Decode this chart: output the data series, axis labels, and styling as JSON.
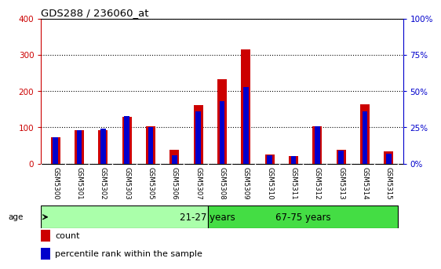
{
  "title": "GDS288 / 236060_at",
  "samples": [
    "GSM5300",
    "GSM5301",
    "GSM5302",
    "GSM5303",
    "GSM5305",
    "GSM5306",
    "GSM5307",
    "GSM5308",
    "GSM5309",
    "GSM5310",
    "GSM5311",
    "GSM5312",
    "GSM5313",
    "GSM5314",
    "GSM5315"
  ],
  "counts": [
    72,
    93,
    92,
    130,
    103,
    38,
    162,
    232,
    315,
    25,
    22,
    103,
    38,
    163,
    35
  ],
  "percentiles": [
    18,
    23,
    24,
    33,
    25,
    6,
    36,
    43,
    53,
    6,
    5,
    26,
    9,
    36,
    7
  ],
  "group1_label": "21-27 years",
  "group2_label": "67-75 years",
  "group1_count": 7,
  "group2_count": 8,
  "ylim_left": [
    0,
    400
  ],
  "ylim_right": [
    0,
    100
  ],
  "yticks_left": [
    0,
    100,
    200,
    300,
    400
  ],
  "yticks_right": [
    0,
    25,
    50,
    75,
    100
  ],
  "ytick_labels_right": [
    "0%",
    "25%",
    "50%",
    "75%",
    "100%"
  ],
  "bar_color_red": "#cc0000",
  "bar_color_blue": "#0000cc",
  "grid_color": "#000000",
  "bg_plot": "#ffffff",
  "bg_figure": "#ffffff",
  "group1_bg": "#aaffaa",
  "group2_bg": "#44dd44",
  "left_tick_color": "#cc0000",
  "right_tick_color": "#0000cc",
  "xtick_bg": "#cccccc",
  "legend_count_label": "count",
  "legend_pct_label": "percentile rank within the sample",
  "bar_width": 0.4
}
